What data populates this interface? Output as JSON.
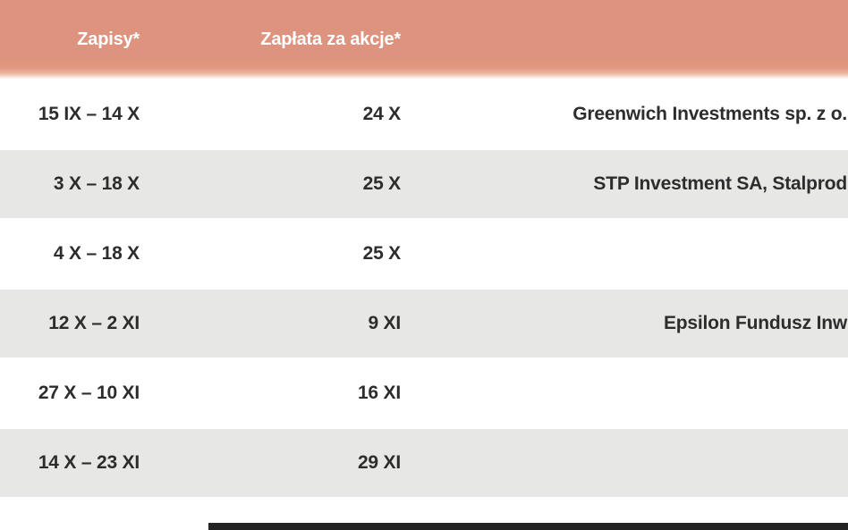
{
  "chart_data": {
    "type": "table",
    "title": "",
    "columns": [
      "Zapisy*",
      "Zapłata za akcje*",
      ""
    ],
    "rows": [
      {
        "zapisy": "15 IX – 14 X",
        "zaplata": "24 X",
        "company": "Greenwich Investments sp. z o."
      },
      {
        "zapisy": "3 X – 18 X",
        "zaplata": "25 X",
        "company": "STP Investment SA, Stalprod"
      },
      {
        "zapisy": "4 X – 18 X",
        "zaplata": "25 X",
        "company": ""
      },
      {
        "zapisy": "12 X – 2 XI",
        "zaplata": "9 XI",
        "company": "Epsilon Fundusz Inw"
      },
      {
        "zapisy": "27 X – 10 XI",
        "zaplata": "16 XI",
        "company": ""
      },
      {
        "zapisy": "14 X – 23 XI",
        "zaplata": "29 XI",
        "company": ""
      }
    ],
    "layout": {
      "row_striping": "white and light gray alternating",
      "value_alignment": "right",
      "company_column_clipped_at_right_edge": true
    }
  },
  "colors": {
    "header_background": "#de937e",
    "header_text": "#ffffff",
    "stripe_gray": "#e7e7e5",
    "body_text": "#2d2d2d",
    "bottom_bar": "#232323"
  }
}
